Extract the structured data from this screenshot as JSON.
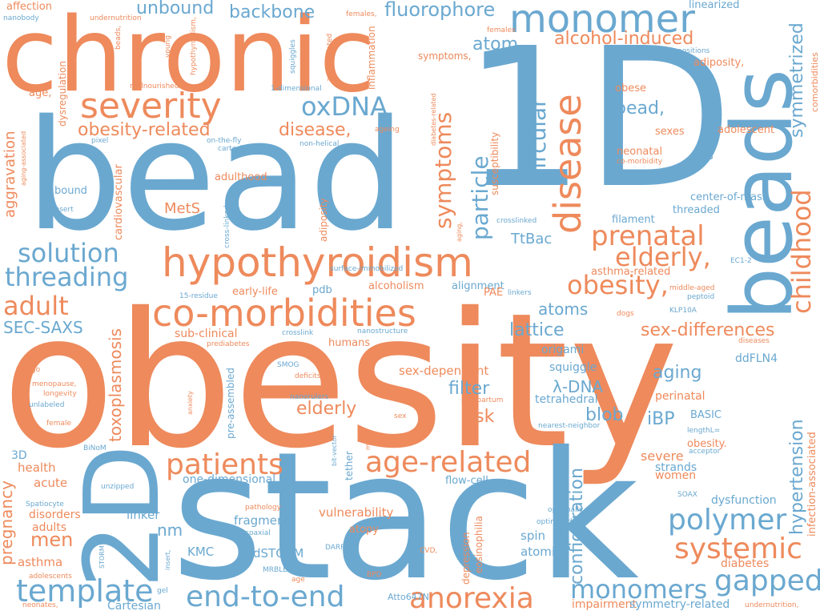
{
  "colors": {
    "orange": "#EE8A5C",
    "blue": "#6AA8D0",
    "background": "#FFFFFF"
  },
  "words": [
    {
      "text": "obesity",
      "color": "orange"
    },
    {
      "text": "stack",
      "color": "blue"
    },
    {
      "text": "bead",
      "color": "blue"
    },
    {
      "text": "chronic",
      "color": "orange"
    },
    {
      "text": "1D",
      "color": "blue"
    },
    {
      "text": "beads",
      "color": "blue"
    },
    {
      "text": "2D",
      "color": "blue"
    },
    {
      "text": "hypothyroidism",
      "color": "orange"
    },
    {
      "text": "co-morbidities",
      "color": "orange"
    },
    {
      "text": "monomer",
      "color": "blue"
    },
    {
      "text": "severity",
      "color": "orange"
    },
    {
      "text": "disease",
      "color": "orange"
    },
    {
      "text": "age-related",
      "color": "orange"
    },
    {
      "text": "patients",
      "color": "orange"
    },
    {
      "text": "anorexia",
      "color": "blue"
    },
    {
      "text": "end-to-end",
      "color": "blue"
    },
    {
      "text": "template",
      "color": "blue"
    },
    {
      "text": "systemic",
      "color": "orange"
    },
    {
      "text": "gapped",
      "color": "blue"
    },
    {
      "text": "polymer",
      "color": "blue"
    },
    {
      "text": "monomers",
      "color": "blue"
    },
    {
      "text": "prenatal",
      "color": "orange"
    },
    {
      "text": "childhood",
      "color": "orange"
    },
    {
      "text": "elderly,",
      "color": "orange"
    },
    {
      "text": "obesity,",
      "color": "orange"
    },
    {
      "text": "solution",
      "color": "blue"
    },
    {
      "text": "threading",
      "color": "blue"
    },
    {
      "text": "adult",
      "color": "orange"
    },
    {
      "text": "oxDNA",
      "color": "blue"
    },
    {
      "text": "symptoms",
      "color": "orange"
    },
    {
      "text": "particle",
      "color": "blue"
    },
    {
      "text": "circular",
      "color": "blue"
    },
    {
      "text": "fluorophore",
      "color": "blue"
    },
    {
      "text": "unbound",
      "color": "blue"
    },
    {
      "text": "backbone",
      "color": "blue"
    },
    {
      "text": "obesity-related",
      "color": "orange"
    },
    {
      "text": "disease,",
      "color": "orange"
    },
    {
      "text": "alcohol-induced",
      "color": "orange"
    },
    {
      "text": "atom",
      "color": "blue"
    },
    {
      "text": "bead,",
      "color": "blue"
    },
    {
      "text": "symmetrized",
      "color": "blue"
    },
    {
      "text": "hypertension",
      "color": "blue"
    },
    {
      "text": "configuration",
      "color": "blue"
    },
    {
      "text": "sex-differences",
      "color": "orange"
    },
    {
      "text": "aging",
      "color": "blue"
    },
    {
      "text": "elderly",
      "color": "orange"
    },
    {
      "text": "filter",
      "color": "blue"
    },
    {
      "text": "risk",
      "color": "orange"
    },
    {
      "text": "blob",
      "color": "blue"
    },
    {
      "text": "iBP",
      "color": "blue"
    },
    {
      "text": "toxoplasmosis",
      "color": "orange"
    },
    {
      "text": "lattice",
      "color": "blue"
    },
    {
      "text": "atoms",
      "color": "blue"
    },
    {
      "text": "λ-DNA",
      "color": "blue"
    },
    {
      "text": "men",
      "color": "orange"
    },
    {
      "text": "nm",
      "color": "blue"
    },
    {
      "text": "SEC-SAXS",
      "color": "blue"
    },
    {
      "text": "pregnancy",
      "color": "orange"
    },
    {
      "text": "aggravation",
      "color": "orange"
    },
    {
      "text": "MetS",
      "color": "orange"
    },
    {
      "text": "TtBac",
      "color": "blue"
    },
    {
      "text": "sex-dependent",
      "color": "orange"
    },
    {
      "text": "severe",
      "color": "orange"
    },
    {
      "text": "fragment",
      "color": "blue"
    },
    {
      "text": "vulnerability",
      "color": "orange"
    },
    {
      "text": "spin",
      "color": "blue"
    },
    {
      "text": "atomic",
      "color": "blue"
    },
    {
      "text": "dSTORM",
      "color": "blue"
    },
    {
      "text": "KMC",
      "color": "blue"
    },
    {
      "text": "asthma",
      "color": "orange"
    },
    {
      "text": "adults",
      "color": "orange"
    },
    {
      "text": "disorders",
      "color": "orange"
    },
    {
      "text": "acute",
      "color": "orange"
    },
    {
      "text": "health",
      "color": "orange"
    },
    {
      "text": "3D",
      "color": "blue"
    },
    {
      "text": "linker",
      "color": "blue"
    },
    {
      "text": "one-dimensional",
      "color": "blue"
    },
    {
      "text": "women",
      "color": "orange"
    },
    {
      "text": "strands",
      "color": "blue"
    },
    {
      "text": "dysfunction",
      "color": "blue"
    },
    {
      "text": "diabetes",
      "color": "orange"
    },
    {
      "text": "impairment",
      "color": "orange"
    },
    {
      "text": "symmetry-related",
      "color": "blue"
    },
    {
      "text": "Cartesian",
      "color": "blue"
    },
    {
      "text": "Atto647N",
      "color": "blue"
    },
    {
      "text": "depression",
      "color": "orange"
    },
    {
      "text": "eosinophilia",
      "color": "orange"
    },
    {
      "text": "atopy",
      "color": "orange"
    },
    {
      "text": "flow-cell",
      "color": "blue"
    },
    {
      "text": "squiggle",
      "color": "blue"
    },
    {
      "text": "tetrahedral",
      "color": "blue"
    },
    {
      "text": "origami",
      "color": "blue"
    },
    {
      "text": "ddFLN4",
      "color": "blue"
    },
    {
      "text": "perinatal",
      "color": "orange"
    },
    {
      "text": "BASIC",
      "color": "blue"
    },
    {
      "text": "obesity.",
      "color": "orange"
    },
    {
      "text": "infection-associated",
      "color": "orange"
    },
    {
      "text": "humans",
      "color": "orange"
    },
    {
      "text": "sub-clinical",
      "color": "orange"
    },
    {
      "text": "alcoholism",
      "color": "orange"
    },
    {
      "text": "alignment",
      "color": "blue"
    },
    {
      "text": "pdb",
      "color": "blue"
    },
    {
      "text": "early-life",
      "color": "orange"
    },
    {
      "text": "adulthood",
      "color": "orange"
    },
    {
      "text": "cardiovascular",
      "color": "orange"
    },
    {
      "text": "bound",
      "color": "blue"
    },
    {
      "text": "adiposity",
      "color": "orange"
    },
    {
      "text": "dysregulation",
      "color": "orange"
    },
    {
      "text": "inflammation",
      "color": "orange"
    },
    {
      "text": "susceptibility",
      "color": "orange"
    },
    {
      "text": "asthma-related",
      "color": "orange"
    },
    {
      "text": "threaded",
      "color": "blue"
    },
    {
      "text": "center-of-mass",
      "color": "blue"
    },
    {
      "text": "filament",
      "color": "blue"
    },
    {
      "text": "adolescent",
      "color": "orange"
    },
    {
      "text": "neonatal",
      "color": "orange"
    },
    {
      "text": "sexes",
      "color": "orange"
    },
    {
      "text": "obese",
      "color": "orange"
    },
    {
      "text": "adiposity,",
      "color": "orange"
    },
    {
      "text": "linearized",
      "color": "blue"
    },
    {
      "text": "comorbidities",
      "color": "orange"
    },
    {
      "text": "user-defined",
      "color": "blue"
    },
    {
      "text": "affection",
      "color": "orange"
    },
    {
      "text": "age,",
      "color": "orange"
    },
    {
      "text": "symptoms,",
      "color": "orange"
    },
    {
      "text": "PAE",
      "color": "orange"
    },
    {
      "text": "pre-assembled",
      "color": "blue"
    },
    {
      "text": "tether",
      "color": "blue"
    },
    {
      "text": "co-morbidity",
      "color": "orange"
    },
    {
      "text": "middle-aged",
      "color": "orange"
    },
    {
      "text": "peptoid",
      "color": "blue"
    },
    {
      "text": "KLP10A",
      "color": "blue"
    },
    {
      "text": "EC1-2",
      "color": "blue"
    },
    {
      "text": "undernutrition",
      "color": "orange"
    },
    {
      "text": "nanobody",
      "color": "blue"
    },
    {
      "text": "beads,",
      "color": "orange"
    },
    {
      "text": "young",
      "color": "orange"
    },
    {
      "text": "hypothyroidism,",
      "color": "orange"
    },
    {
      "text": "squiggles",
      "color": "blue"
    },
    {
      "text": "aging-related",
      "color": "orange"
    },
    {
      "text": "females,",
      "color": "orange"
    },
    {
      "text": "females",
      "color": "orange"
    },
    {
      "text": "positions",
      "color": "blue"
    },
    {
      "text": "malnourished",
      "color": "orange"
    },
    {
      "text": "1-dimensional",
      "color": "blue"
    },
    {
      "text": "pixel",
      "color": "blue"
    },
    {
      "text": "on-the-fly",
      "color": "blue"
    },
    {
      "text": "cartesian",
      "color": "blue"
    },
    {
      "text": "non-helical",
      "color": "blue"
    },
    {
      "text": "ageing",
      "color": "orange"
    },
    {
      "text": "diabetes-related",
      "color": "orange"
    },
    {
      "text": "aging-associated",
      "color": "orange"
    },
    {
      "text": "insert",
      "color": "blue"
    },
    {
      "text": "cross-linked",
      "color": "blue"
    },
    {
      "text": "crosslinked",
      "color": "blue"
    },
    {
      "text": "surface-immobilized",
      "color": "blue"
    },
    {
      "text": "aging,",
      "color": "orange"
    },
    {
      "text": "linkers",
      "color": "blue"
    },
    {
      "text": "dogs",
      "color": "orange"
    },
    {
      "text": "15-residue",
      "color": "blue"
    },
    {
      "text": "crosslink",
      "color": "blue"
    },
    {
      "text": "nanostructure",
      "color": "blue"
    },
    {
      "text": "prediabetes",
      "color": "orange"
    },
    {
      "text": "diseases",
      "color": "orange"
    },
    {
      "text": "SMOG",
      "color": "blue"
    },
    {
      "text": "deficits",
      "color": "orange"
    },
    {
      "text": "vitiligo",
      "color": "orange"
    },
    {
      "text": "menopause,",
      "color": "orange"
    },
    {
      "text": "longevity",
      "color": "orange"
    },
    {
      "text": "unlabeled",
      "color": "blue"
    },
    {
      "text": "female",
      "color": "orange"
    },
    {
      "text": "anxiety",
      "color": "orange"
    },
    {
      "text": "nanorulers",
      "color": "blue"
    },
    {
      "text": "postpartum",
      "color": "orange"
    },
    {
      "text": "sex",
      "color": "orange"
    },
    {
      "text": "nearest-neighbor",
      "color": "blue"
    },
    {
      "text": "lengthL=",
      "color": "blue"
    },
    {
      "text": "acceptor",
      "color": "blue"
    },
    {
      "text": "BiNoM",
      "color": "blue"
    },
    {
      "text": "bit-vector",
      "color": "blue"
    },
    {
      "text": "male",
      "color": "orange"
    },
    {
      "text": "unzipped",
      "color": "blue"
    },
    {
      "text": "Spatiocyte",
      "color": "blue"
    },
    {
      "text": "SOAX",
      "color": "blue"
    },
    {
      "text": "optionally",
      "color": "blue"
    },
    {
      "text": "optimized",
      "color": "blue"
    },
    {
      "text": "pathology",
      "color": "orange"
    },
    {
      "text": "coaxial",
      "color": "blue"
    },
    {
      "text": "STORM",
      "color": "blue"
    },
    {
      "text": "insert,",
      "color": "blue"
    },
    {
      "text": "DARPin",
      "color": "blue"
    },
    {
      "text": "CVD,",
      "color": "orange"
    },
    {
      "text": "MRBLEs",
      "color": "blue"
    },
    {
      "text": "age",
      "color": "orange"
    },
    {
      "text": "BPD",
      "color": "orange"
    },
    {
      "text": "adolescents",
      "color": "orange"
    },
    {
      "text": "gel",
      "color": "blue"
    },
    {
      "text": "neonates,",
      "color": "orange"
    },
    {
      "text": "undernutrition,",
      "color": "orange"
    }
  ]
}
